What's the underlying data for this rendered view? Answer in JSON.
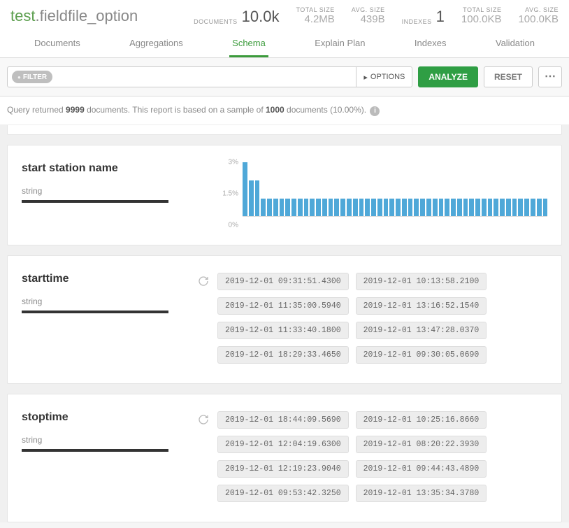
{
  "namespace": {
    "db": "test",
    "coll": ".fieldfile_option"
  },
  "stats": {
    "documents_label": "DOCUMENTS",
    "documents_value": "10.0k",
    "doc_total_size_label": "TOTAL SIZE",
    "doc_total_size": "4.2MB",
    "doc_avg_size_label": "AVG. SIZE",
    "doc_avg_size": "439B",
    "indexes_label": "INDEXES",
    "indexes_value": "1",
    "idx_total_size_label": "TOTAL SIZE",
    "idx_total_size": "100.0KB",
    "idx_avg_size_label": "AVG. SIZE",
    "idx_avg_size": "100.0KB"
  },
  "tabs": {
    "documents": "Documents",
    "aggregations": "Aggregations",
    "schema": "Schema",
    "explain": "Explain Plan",
    "indexes": "Indexes",
    "validation": "Validation"
  },
  "toolbar": {
    "filter_badge": "FILTER",
    "options": "OPTIONS",
    "analyze": "ANALYZE",
    "reset": "RESET"
  },
  "query_msg": {
    "pre": "Query returned ",
    "count": "9999",
    "mid": " documents. This report is based on a sample of ",
    "sample": "1000",
    "post": " documents (10.00%)."
  },
  "fields": {
    "f1": {
      "name": "start station name",
      "type": "string"
    },
    "f2": {
      "name": "starttime",
      "type": "string",
      "values": [
        "2019-12-01 09:31:51.4300",
        "2019-12-01 10:13:58.2100",
        "2019-12-01 11:35:00.5940",
        "2019-12-01 13:16:52.1540",
        "2019-12-01 11:33:40.1800",
        "2019-12-01 13:47:28.0370",
        "2019-12-01 18:29:33.4650",
        "2019-12-01 09:30:05.0690"
      ]
    },
    "f3": {
      "name": "stoptime",
      "type": "string",
      "values": [
        "2019-12-01 18:44:09.5690",
        "2019-12-01 10:25:16.8660",
        "2019-12-01 12:04:19.6300",
        "2019-12-01 08:20:22.3930",
        "2019-12-01 12:19:23.9040",
        "2019-12-01 09:44:43.4890",
        "2019-12-01 09:53:42.3250",
        "2019-12-01 13:35:34.3780"
      ]
    }
  },
  "histogram": {
    "type": "bar",
    "y_ticks": [
      "3%",
      "1.5%",
      "0%"
    ],
    "y_max_pct": 3,
    "bar_color": "#4fa8d8",
    "values_pct": [
      3.0,
      2.0,
      2.0,
      1.0,
      1.0,
      1.0,
      1.0,
      1.0,
      1.0,
      1.0,
      1.0,
      1.0,
      1.0,
      1.0,
      1.0,
      1.0,
      1.0,
      1.0,
      1.0,
      1.0,
      1.0,
      1.0,
      1.0,
      1.0,
      1.0,
      1.0,
      1.0,
      1.0,
      1.0,
      1.0,
      1.0,
      1.0,
      1.0,
      1.0,
      1.0,
      1.0,
      1.0,
      1.0,
      1.0,
      1.0,
      1.0,
      1.0,
      1.0,
      1.0,
      1.0,
      1.0,
      1.0,
      1.0,
      1.0,
      1.0
    ]
  }
}
